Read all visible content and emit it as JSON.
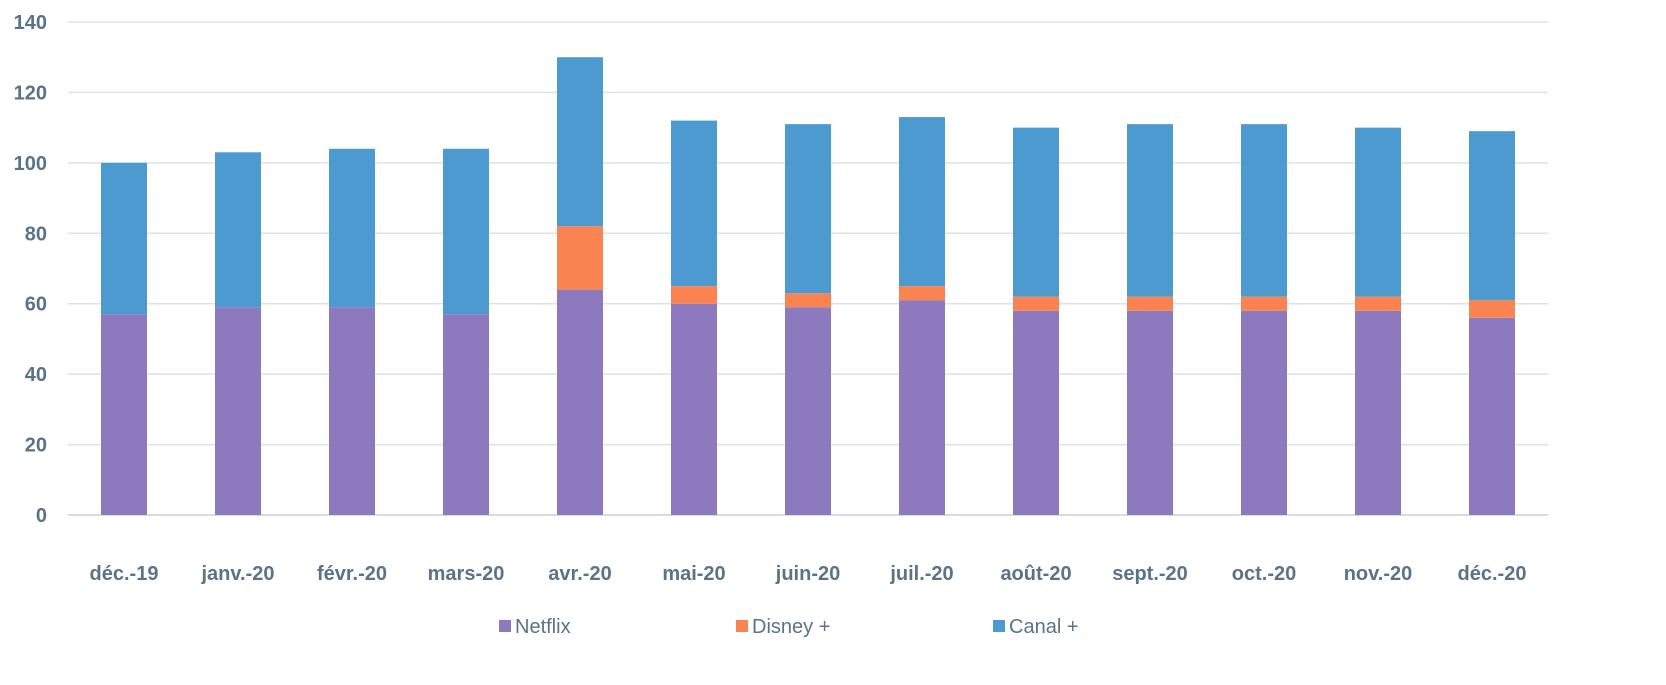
{
  "chart_data": {
    "type": "bar",
    "stacked": true,
    "categories": [
      "déc.-19",
      "janv.-20",
      "févr.-20",
      "mars-20",
      "avr.-20",
      "mai-20",
      "juin-20",
      "juil.-20",
      "août-20",
      "sept.-20",
      "oct.-20",
      "nov.-20",
      "déc.-20"
    ],
    "series": [
      {
        "name": "Netflix",
        "color": "#8c79be",
        "values": [
          57,
          59,
          59,
          57,
          64,
          60,
          59,
          61,
          58,
          58,
          58,
          58,
          56
        ]
      },
      {
        "name": "Disney +",
        "color": "#f98351",
        "values": [
          0,
          0,
          0,
          0,
          18,
          5,
          4,
          4,
          4,
          4,
          4,
          4,
          5
        ]
      },
      {
        "name": "Canal +",
        "color": "#4d9ad0",
        "values": [
          43,
          44,
          45,
          47,
          48,
          47,
          48,
          48,
          48,
          49,
          49,
          48,
          48
        ]
      }
    ],
    "ylim": [
      0,
      140
    ],
    "yticks": [
      0,
      20,
      40,
      60,
      80,
      100,
      120,
      140
    ],
    "grid": true,
    "legend_position": "bottom",
    "title": "",
    "xlabel": "",
    "ylabel": ""
  }
}
